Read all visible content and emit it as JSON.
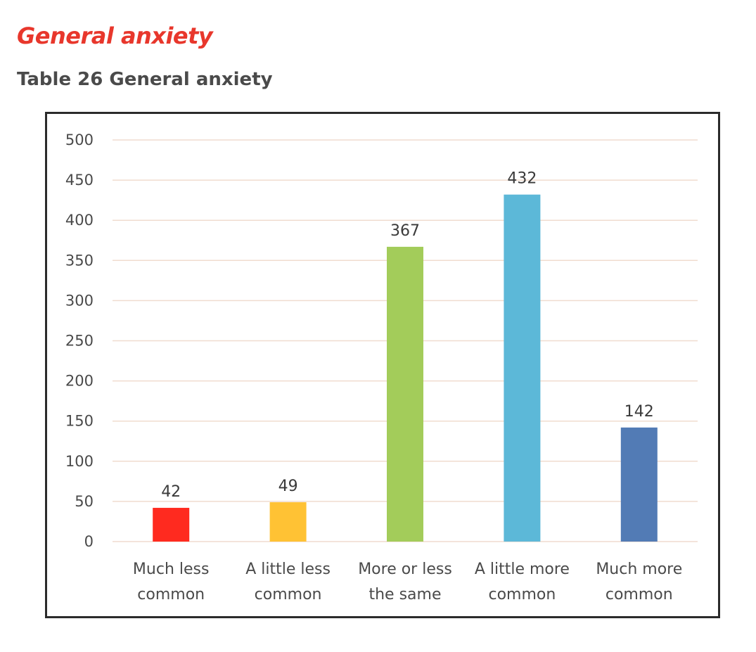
{
  "page": {
    "section_heading": "General anxiety",
    "table_caption": "Table 26 General anxiety"
  },
  "chart_data": {
    "type": "bar",
    "title": "",
    "xlabel": "",
    "ylabel": "",
    "categories": [
      [
        "Much less",
        "common"
      ],
      [
        "A little less",
        "common"
      ],
      [
        "More or less",
        "the same"
      ],
      [
        "A little more",
        "common"
      ],
      [
        "Much more",
        "common"
      ]
    ],
    "values": [
      42,
      49,
      367,
      432,
      142
    ],
    "value_labels": [
      "42",
      "49",
      "367",
      "432",
      "142"
    ],
    "colors": [
      "#ff2a1f",
      "#ffc234",
      "#a3cc5a",
      "#5cb8d8",
      "#527bb5"
    ],
    "ylim": [
      0,
      500
    ],
    "yticks": [
      0,
      50,
      100,
      150,
      200,
      250,
      300,
      350,
      400,
      450,
      500
    ],
    "ytick_labels": [
      "0",
      "50",
      "100",
      "150",
      "200",
      "250",
      "300",
      "350",
      "400",
      "450",
      "500"
    ],
    "grid": true,
    "grid_color": "#f0dccf",
    "legend": "none"
  }
}
